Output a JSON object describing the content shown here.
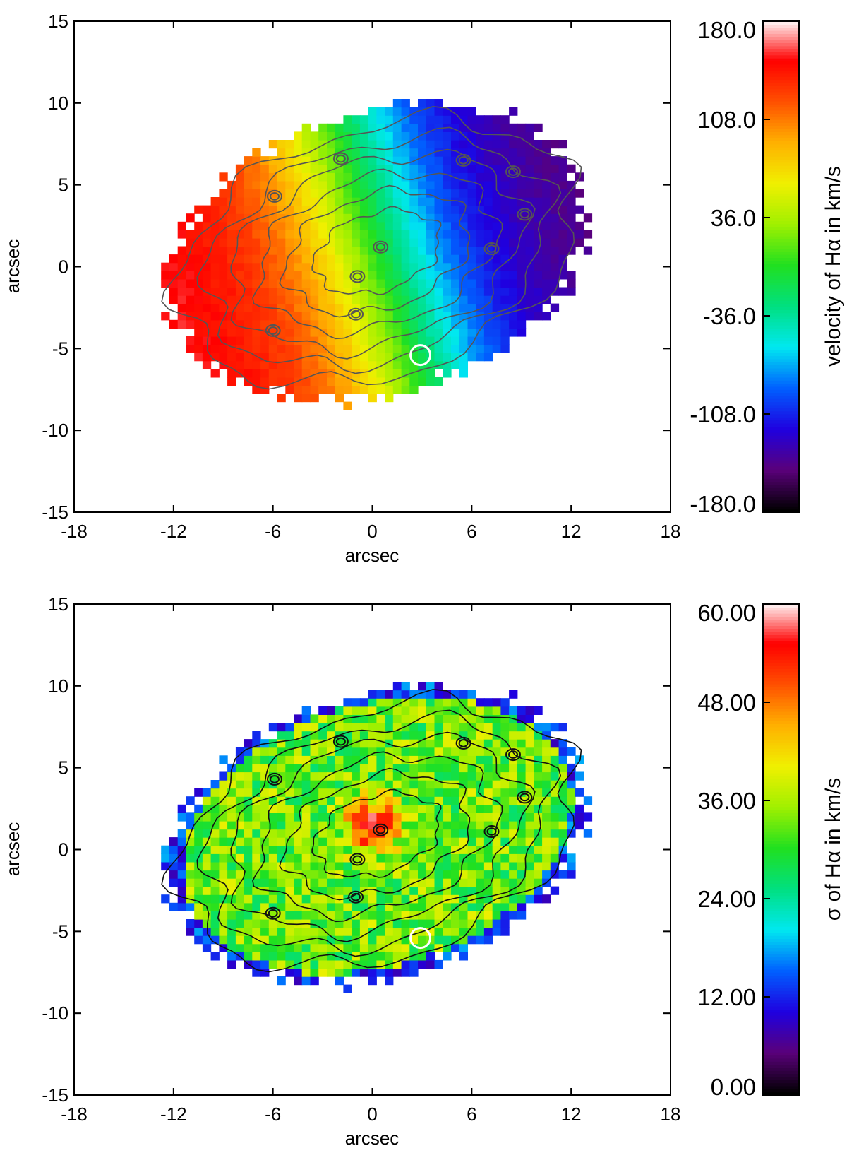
{
  "chart_data": [
    {
      "type": "heatmap",
      "panel": "top",
      "xlabel": "arcsec",
      "ylabel": "arcsec",
      "xlim": [
        -18,
        18
      ],
      "ylim": [
        -15,
        15
      ],
      "x_ticks": [
        "-18",
        "-12",
        "-6",
        "0",
        "6",
        "12",
        "18"
      ],
      "y_ticks": [
        "15",
        "10",
        "5",
        "0",
        "-5",
        "-10",
        "-15"
      ],
      "colorbar": {
        "label": "velocity of Hα in km/s",
        "range": [
          -180,
          180
        ],
        "ticks": [
          "180.0",
          "108.0",
          "36.0",
          "-36.0",
          "-108.0",
          "-180.0"
        ],
        "colors": [
          "#000000",
          "#5a007a",
          "#1f00e0",
          "#0060ff",
          "#00e8f0",
          "#00e080",
          "#20e020",
          "#a0f000",
          "#f0f000",
          "#ffb000",
          "#ff5000",
          "#ff0000",
          "#ffffff"
        ]
      },
      "field": {
        "kind": "velocity",
        "gradient": "east-west",
        "west_edge_value": 160,
        "east_edge_value": -150,
        "center_value": 0
      },
      "marker": {
        "x": 2.9,
        "y": -5.4,
        "shape": "circle",
        "color": "#ffffff"
      },
      "contour_color": "#555555"
    },
    {
      "type": "heatmap",
      "panel": "bottom",
      "xlabel": "arcsec",
      "ylabel": "arcsec",
      "xlim": [
        -18,
        18
      ],
      "ylim": [
        -15,
        15
      ],
      "x_ticks": [
        "-18",
        "-12",
        "-6",
        "0",
        "6",
        "12",
        "18"
      ],
      "y_ticks": [
        "15",
        "10",
        "5",
        "0",
        "-5",
        "-10",
        "-15"
      ],
      "colorbar": {
        "label": "σ of Hα in km/s",
        "range": [
          0,
          60
        ],
        "ticks": [
          "60.00",
          "48.00",
          "36.00",
          "24.00",
          "12.00",
          "0.00"
        ],
        "colors": [
          "#000000",
          "#5a007a",
          "#1f00e0",
          "#0060ff",
          "#00e8f0",
          "#00e080",
          "#20e020",
          "#a0f000",
          "#f0f000",
          "#ffb000",
          "#ff5000",
          "#ff0000",
          "#ffffff"
        ]
      },
      "field": {
        "kind": "dispersion",
        "typical_value": 33,
        "peak_value": 58,
        "peak_position": [
          0.0,
          1.5
        ],
        "edge_value": 8
      },
      "marker": {
        "x": 2.9,
        "y": -5.4,
        "shape": "circle",
        "color": "#ffffff"
      },
      "contour_color": "#111111"
    }
  ]
}
